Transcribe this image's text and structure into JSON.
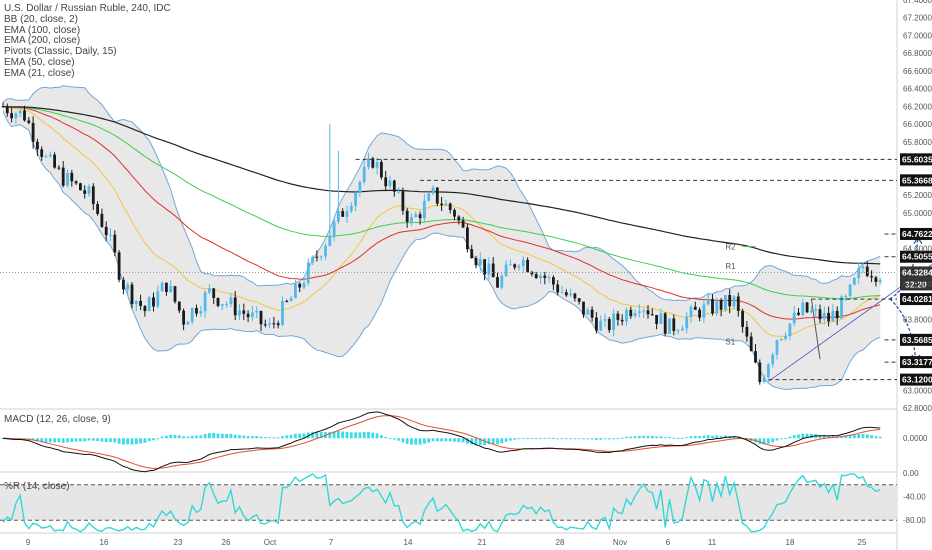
{
  "legend": {
    "title": "U.S. Dollar / Russian Ruble, 240, IDC",
    "indicators": [
      "BB (20, close, 2)",
      "EMA (100, close)",
      "EMA (200, close)",
      "Pivots (Classic, Daily, 15)",
      "EMA (50, close)",
      "EMA (21, close)"
    ]
  },
  "macd_label": "MACD (12, 26, close, 9)",
  "wr_label": "%R (14, close)",
  "countdown": "32:20",
  "pivot_labels": [
    "R2",
    "R1",
    "S1"
  ],
  "colors": {
    "up": "#53b9ea",
    "down": "#1a1a1a",
    "ema21": "#f4c542",
    "ema50": "#e0302a",
    "ema100": "#3ecf4c",
    "ema200": "#222222",
    "bb": "#6fa8dc",
    "bb_fill": "#d9d9d9",
    "wr": "#34d7d7",
    "signal": "#e05030",
    "arrow": "#1f4e96",
    "trend": "#6a6ac8"
  },
  "chart_data": [
    {
      "type": "candlestick",
      "y_axis": {
        "min": 62.8,
        "max": 67.4,
        "ticks": [
          "67.4000",
          "67.2000",
          "67.0000",
          "66.8000",
          "66.6000",
          "66.4000",
          "66.2000",
          "66.0000",
          "65.8000",
          "65.6000",
          "65.4000",
          "65.2000",
          "65.0000",
          "64.8000",
          "64.6000",
          "64.4000",
          "64.2000",
          "64.0000",
          "63.8000",
          "63.6000",
          "63.4000",
          "63.2000",
          "63.0000",
          "62.8000"
        ]
      },
      "x_ticks": [
        "9",
        "16",
        "23",
        "26",
        "Oct",
        "7",
        "14",
        "21",
        "28",
        "Nov",
        "6",
        "11",
        "18",
        "25"
      ],
      "price_keypoints": [
        [
          0,
          66.2
        ],
        [
          5,
          66.1
        ],
        [
          10,
          65.6
        ],
        [
          14,
          65.4
        ],
        [
          20,
          65.2
        ],
        [
          24,
          64.8
        ],
        [
          28,
          64.2
        ],
        [
          33,
          63.9
        ],
        [
          38,
          64.2
        ],
        [
          42,
          63.8
        ],
        [
          48,
          64.1
        ],
        [
          55,
          63.9
        ],
        [
          62,
          63.7
        ],
        [
          68,
          64.1
        ],
        [
          74,
          64.6
        ],
        [
          80,
          65.1
        ],
        [
          86,
          65.6
        ],
        [
          90,
          65.3
        ],
        [
          95,
          64.9
        ],
        [
          100,
          65.2
        ],
        [
          105,
          65.0
        ],
        [
          110,
          64.5
        ],
        [
          115,
          64.2
        ],
        [
          120,
          64.5
        ],
        [
          128,
          64.2
        ],
        [
          135,
          63.9
        ],
        [
          140,
          63.7
        ],
        [
          148,
          64.0
        ],
        [
          155,
          63.7
        ],
        [
          162,
          63.9
        ],
        [
          170,
          64.0
        ],
        [
          176,
          63.1
        ],
        [
          180,
          63.6
        ],
        [
          186,
          63.9
        ],
        [
          192,
          63.8
        ],
        [
          196,
          64.0
        ],
        [
          200,
          64.4
        ],
        [
          203,
          64.33
        ]
      ],
      "price_labels": [
        {
          "value": 65.6035,
          "text": "65.6035",
          "dashed": true,
          "from": 82
        },
        {
          "value": 65.3668,
          "text": "65.3668",
          "dashed": true,
          "from": 97
        },
        {
          "value": 64.7622,
          "text": "64.7622",
          "dashed": true,
          "from": 205
        },
        {
          "value": 64.5055,
          "text": "64.5055",
          "dashed": true,
          "from": 205
        },
        {
          "value": 64.3284,
          "text": "64.3284",
          "dashed": false,
          "from": 0
        },
        {
          "value": 64.0281,
          "text": "64.0281",
          "dashed": true,
          "from": 188
        },
        {
          "value": 63.5685,
          "text": "63.5685",
          "dashed": true,
          "from": 205
        },
        {
          "value": 63.3177,
          "text": "63.3177",
          "dashed": true,
          "from": 205
        },
        {
          "value": 63.12,
          "text": "63.1200",
          "dashed": true,
          "from": 178
        }
      ]
    },
    {
      "type": "macd",
      "label": "MACD (12, 26, close, 9)",
      "y_axis": {
        "min": -0.45,
        "max": 0.4,
        "ticks": [
          "0.0000"
        ]
      }
    },
    {
      "type": "williams_r",
      "label": "%R (14, close)",
      "y_axis": {
        "min": -100,
        "max": 0,
        "ticks": [
          "0.00",
          "-20.00",
          "-40.00",
          "-60.00",
          "-80.00",
          "-100.00"
        ]
      },
      "levels": [
        -20,
        -80
      ]
    }
  ]
}
